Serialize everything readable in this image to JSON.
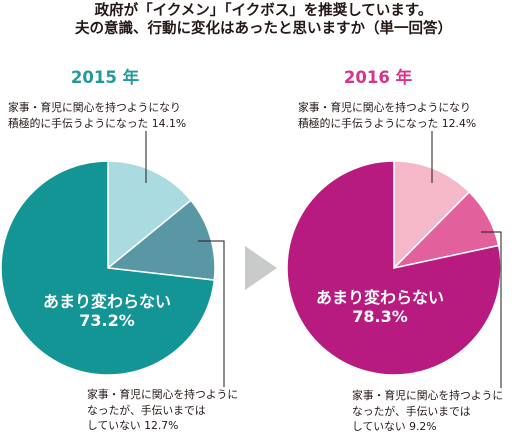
{
  "title": {
    "line1": "政府が「イクメン」「イクボス」を推奨しています。",
    "line2": "夫の意識、行動に変化はあったと思いますか（単一回答）"
  },
  "colors": {
    "teal_main": "#139495",
    "teal_mid": "#5a97a5",
    "teal_light": "#a9dbe0",
    "magenta_main": "#b81b7f",
    "magenta_mid": "#e2609c",
    "magenta_light": "#f5b8c8",
    "arrow": "#c9caca"
  },
  "chart_data": [
    {
      "type": "pie",
      "title": "2015 年",
      "slices": [
        {
          "label": "家事・育児に関心を持つようになり積極的に手伝うようになった",
          "value": 14.1
        },
        {
          "label": "家事・育児に関心を持つようになったが、手伝いまではしていない",
          "value": 12.7
        },
        {
          "label": "あまり変わらない",
          "value": 73.2
        }
      ]
    },
    {
      "type": "pie",
      "title": "2016 年",
      "slices": [
        {
          "label": "家事・育児に関心を持つようになり積極的に手伝うようになった",
          "value": 12.4
        },
        {
          "label": "家事・育児に関心を持つようになったが、手伝いまではしていない",
          "value": 9.2
        },
        {
          "label": "あまり変わらない",
          "value": 78.3
        }
      ]
    }
  ],
  "labels": {
    "y2015": {
      "a_line1": "家事・育児に関心を持つようになり",
      "a_line2": "積極的に手伝うようになった 14.1%",
      "b_line1": "家事・育児に関心を持つように",
      "b_line2": "なったが、手伝いまでは",
      "b_line3": "していない 12.7%",
      "c_text": "あまり変わらない",
      "c_value": "73.2%"
    },
    "y2016": {
      "a_line1": "家事・育児に関心を持つようになり",
      "a_line2": "積極的に手伝うようになった 12.4%",
      "b_line1": "家事・育児に関心を持つように",
      "b_line2": "なったが、手伝いまでは",
      "b_line3": "していない 9.2%",
      "c_text": "あまり変わらない",
      "c_value": "78.3%"
    }
  }
}
